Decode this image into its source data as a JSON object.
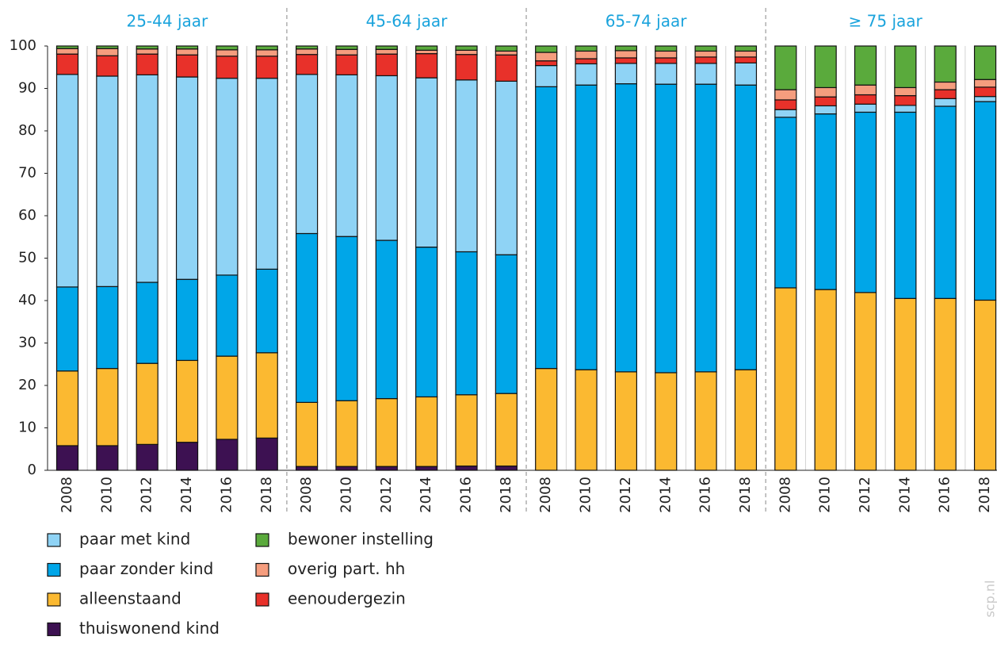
{
  "chart_data": {
    "type": "stacked_bar",
    "groups": [
      "25-44 jaar",
      "45-64 jaar",
      "65-74 jaar",
      "≥ 75 jaar"
    ],
    "categories": [
      "2008",
      "2010",
      "2012",
      "2014",
      "2016",
      "2018",
      "2008",
      "2010",
      "2012",
      "2014",
      "2016",
      "2018",
      "2008",
      "2010",
      "2012",
      "2014",
      "2016",
      "2018",
      "2008",
      "2010",
      "2012",
      "2014",
      "2016",
      "2018"
    ],
    "series": [
      {
        "name": "paar met kind",
        "color": "#8fd3f5",
        "values": [
          50.1,
          49.6,
          48.9,
          47.7,
          46.4,
          45.0,
          37.5,
          38.1,
          38.8,
          39.9,
          40.5,
          40.9,
          5.0,
          5.0,
          4.8,
          4.9,
          4.9,
          5.2,
          1.8,
          1.9,
          1.9,
          1.6,
          1.8,
          1.2
        ]
      },
      {
        "name": "paar zonder kind",
        "color": "#00a6e8",
        "values": [
          19.8,
          19.3,
          19.1,
          19.1,
          19.1,
          19.7,
          39.8,
          38.7,
          37.3,
          35.3,
          33.7,
          32.7,
          66.4,
          67.1,
          67.9,
          68.0,
          67.8,
          67.1,
          40.2,
          41.4,
          42.5,
          43.9,
          45.3,
          46.8
        ]
      },
      {
        "name": "alleenstaand",
        "color": "#fbb931",
        "values": [
          17.6,
          18.2,
          19.1,
          19.3,
          19.6,
          20.1,
          15.1,
          15.5,
          16.0,
          16.4,
          16.8,
          17.1,
          24.0,
          23.7,
          23.2,
          23.0,
          23.2,
          23.7,
          43.0,
          42.6,
          41.9,
          40.5,
          40.5,
          40.1
        ]
      },
      {
        "name": "thuiswonend kind",
        "color": "#3d1152",
        "values": [
          5.8,
          5.8,
          6.1,
          6.6,
          7.3,
          7.6,
          0.9,
          0.9,
          0.9,
          0.9,
          1.0,
          1.0,
          0,
          0,
          0,
          0,
          0,
          0,
          0,
          0,
          0,
          0,
          0,
          0
        ]
      },
      {
        "name": "bewoner instelling",
        "color": "#5aaa3c",
        "values": [
          0.6,
          0.6,
          0.7,
          0.7,
          0.9,
          0.9,
          0.7,
          0.8,
          0.8,
          1.0,
          1.0,
          1.2,
          1.5,
          1.2,
          1.1,
          1.2,
          1.2,
          1.2,
          10.3,
          9.8,
          9.2,
          9.8,
          8.5,
          7.9
        ]
      },
      {
        "name": "overig part. hh",
        "color": "#f59d7e",
        "values": [
          1.3,
          1.7,
          1.2,
          1.4,
          1.5,
          1.5,
          1.3,
          1.3,
          1.1,
          0.8,
          1.0,
          0.9,
          2.0,
          1.8,
          1.7,
          1.6,
          1.4,
          1.4,
          2.4,
          2.2,
          2.3,
          1.9,
          1.8,
          1.8
        ]
      },
      {
        "name": "eenoudergezin",
        "color": "#e8312a",
        "values": [
          4.8,
          4.8,
          4.9,
          5.2,
          5.2,
          5.2,
          4.7,
          4.7,
          5.1,
          5.7,
          6.0,
          6.2,
          1.1,
          1.2,
          1.3,
          1.3,
          1.5,
          1.4,
          2.3,
          2.1,
          2.2,
          2.3,
          2.1,
          2.2
        ]
      }
    ],
    "ylim": [
      0,
      100
    ],
    "yticks": [
      0,
      10,
      20,
      30,
      40,
      50,
      60,
      70,
      80,
      90,
      100
    ],
    "grid": "x",
    "watermark": "scp.nl"
  }
}
